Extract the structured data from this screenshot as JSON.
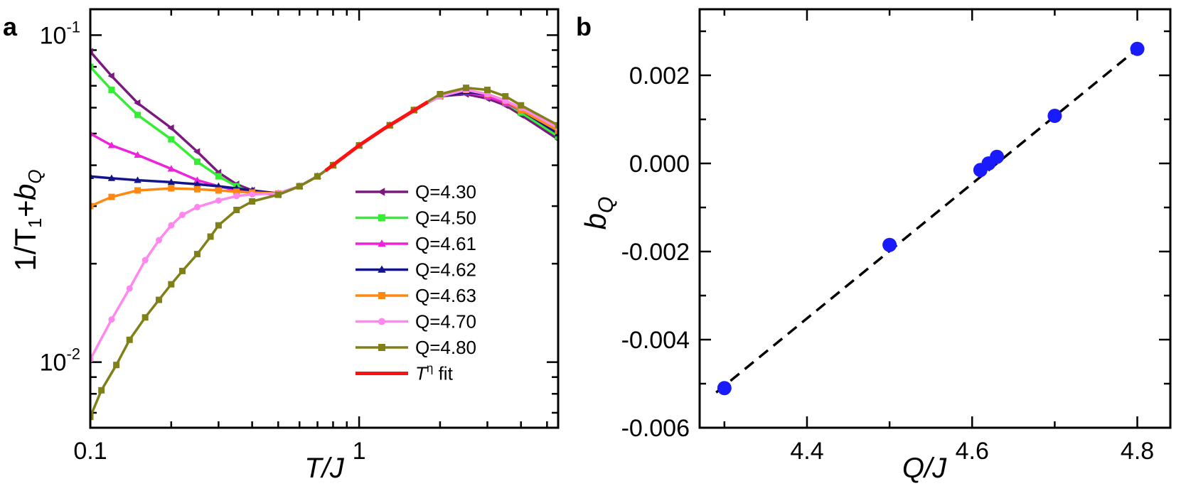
{
  "chart_data": [
    {
      "panel_label": "a",
      "type": "line",
      "xscale": "log",
      "yscale": "log",
      "xlim": [
        0.1,
        5.5
      ],
      "ylim": [
        0.0063,
        0.12
      ],
      "xticks": [
        {
          "value": 0.1,
          "label": "0.1"
        },
        {
          "value": 1,
          "label": "1"
        }
      ],
      "yticks": [
        {
          "value": 0.01,
          "base": "10",
          "exp": "-2"
        },
        {
          "value": 0.1,
          "base": "10",
          "exp": "-1"
        }
      ],
      "xlabel": {
        "main": "T/J"
      },
      "ylabel": {
        "prefix": "1/T",
        "sub1": "1",
        "mid": "+b",
        "sub2": "Q"
      },
      "legend_position": "lower-right",
      "series": [
        {
          "name": "Q=4.30",
          "color": "#7b1a7e",
          "marker": "triangle-left",
          "x": [
            0.1,
            0.12,
            0.15,
            0.2,
            0.25,
            0.3,
            0.35,
            0.4,
            0.5,
            0.6,
            0.7,
            0.8,
            1.0,
            1.3,
            1.6,
            2.0,
            2.5,
            3.0,
            3.5,
            4.0,
            5.5
          ],
          "y": [
            0.089,
            0.075,
            0.062,
            0.052,
            0.044,
            0.038,
            0.035,
            0.0335,
            0.0325,
            0.0345,
            0.037,
            0.04,
            0.046,
            0.053,
            0.059,
            0.065,
            0.066,
            0.064,
            0.061,
            0.057,
            0.048
          ]
        },
        {
          "name": "Q=4.50",
          "color": "#33ee33",
          "marker": "square",
          "x": [
            0.1,
            0.12,
            0.15,
            0.2,
            0.25,
            0.3,
            0.35,
            0.4,
            0.5,
            0.6,
            0.7,
            0.8,
            1.0,
            1.3,
            1.6,
            2.0,
            2.5,
            3.0,
            3.5,
            4.0,
            5.5
          ],
          "y": [
            0.08,
            0.068,
            0.057,
            0.048,
            0.041,
            0.037,
            0.0345,
            0.033,
            0.0325,
            0.0345,
            0.037,
            0.04,
            0.046,
            0.053,
            0.059,
            0.065,
            0.067,
            0.065,
            0.062,
            0.058,
            0.049
          ]
        },
        {
          "name": "Q=4.61",
          "color": "#ee22dd",
          "marker": "triangle-up",
          "x": [
            0.1,
            0.12,
            0.15,
            0.2,
            0.25,
            0.3,
            0.35,
            0.4,
            0.5,
            0.6,
            0.7,
            0.8,
            1.0,
            1.3,
            1.6,
            2.0,
            2.5,
            3.0,
            3.5,
            4.0,
            5.5
          ],
          "y": [
            0.05,
            0.046,
            0.043,
            0.039,
            0.036,
            0.0345,
            0.0335,
            0.033,
            0.0325,
            0.0345,
            0.037,
            0.04,
            0.046,
            0.053,
            0.059,
            0.065,
            0.067,
            0.065,
            0.062,
            0.059,
            0.05
          ]
        },
        {
          "name": "Q=4.62",
          "color": "#14148a",
          "marker": "triangle-up",
          "x": [
            0.1,
            0.12,
            0.15,
            0.2,
            0.25,
            0.3,
            0.35,
            0.4,
            0.5,
            0.6,
            0.7,
            0.8,
            1.0,
            1.3,
            1.6,
            2.0,
            2.5,
            3.0,
            3.5,
            4.0,
            5.5
          ],
          "y": [
            0.037,
            0.0365,
            0.036,
            0.0355,
            0.035,
            0.0345,
            0.034,
            0.0335,
            0.0328,
            0.0345,
            0.037,
            0.04,
            0.046,
            0.053,
            0.059,
            0.065,
            0.067,
            0.066,
            0.063,
            0.059,
            0.05
          ]
        },
        {
          "name": "Q=4.63",
          "color": "#ff8811",
          "marker": "square",
          "x": [
            0.1,
            0.12,
            0.15,
            0.2,
            0.25,
            0.3,
            0.35,
            0.4,
            0.5,
            0.6,
            0.7,
            0.8,
            1.0,
            1.3,
            1.6,
            2.0,
            2.5,
            3.0,
            3.5,
            4.0,
            5.5
          ],
          "y": [
            0.03,
            0.032,
            0.0335,
            0.034,
            0.0338,
            0.0335,
            0.0332,
            0.033,
            0.0328,
            0.0345,
            0.037,
            0.04,
            0.046,
            0.053,
            0.059,
            0.065,
            0.068,
            0.066,
            0.063,
            0.059,
            0.051
          ]
        },
        {
          "name": "Q=4.70",
          "color": "#ff88ee",
          "marker": "circle",
          "x": [
            0.1,
            0.12,
            0.14,
            0.16,
            0.18,
            0.2,
            0.22,
            0.25,
            0.3,
            0.35,
            0.4,
            0.5,
            0.6,
            0.7,
            0.8,
            1.0,
            1.3,
            1.6,
            2.0,
            2.5,
            3.0,
            3.5,
            4.0,
            5.5
          ],
          "y": [
            0.0102,
            0.0135,
            0.0168,
            0.0205,
            0.0236,
            0.0262,
            0.0282,
            0.0298,
            0.0312,
            0.0322,
            0.0326,
            0.0328,
            0.0345,
            0.037,
            0.04,
            0.046,
            0.053,
            0.059,
            0.065,
            0.068,
            0.066,
            0.063,
            0.06,
            0.052
          ]
        },
        {
          "name": "Q=4.80",
          "color": "#808018",
          "marker": "square",
          "x": [
            0.1,
            0.11,
            0.125,
            0.14,
            0.16,
            0.18,
            0.2,
            0.22,
            0.25,
            0.28,
            0.3,
            0.35,
            0.4,
            0.5,
            0.6,
            0.7,
            0.8,
            1.0,
            1.3,
            1.6,
            2.0,
            2.5,
            3.0,
            3.5,
            4.0,
            5.5
          ],
          "y": [
            0.0068,
            0.0082,
            0.0098,
            0.0117,
            0.0137,
            0.0155,
            0.0173,
            0.019,
            0.0214,
            0.0242,
            0.0262,
            0.0292,
            0.031,
            0.0325,
            0.0345,
            0.037,
            0.04,
            0.046,
            0.053,
            0.059,
            0.066,
            0.069,
            0.068,
            0.065,
            0.061,
            0.053
          ]
        },
        {
          "name": "T^η fit",
          "name_main": "T",
          "name_sup": "η",
          "name_suffix": " fit",
          "color": "#ff1111",
          "marker": "none",
          "line_only": true,
          "x": [
            0.75,
            1.0,
            1.25,
            1.45,
            1.65,
            1.8
          ],
          "y": [
            0.0385,
            0.046,
            0.052,
            0.056,
            0.0598,
            0.0625
          ]
        }
      ]
    },
    {
      "panel_label": "b",
      "type": "scatter",
      "xlim": [
        4.27,
        4.84
      ],
      "ylim": [
        -0.006,
        0.0035
      ],
      "xticks": [
        4.4,
        4.6,
        4.8
      ],
      "xtick_labels": [
        "4.4",
        "4.6",
        "4.8"
      ],
      "yticks": [
        -0.006,
        -0.004,
        -0.002,
        0.0,
        0.002
      ],
      "ytick_labels": [
        "-0.006",
        "-0.004",
        "-0.002",
        "0.000",
        "0.002"
      ],
      "xlabel": {
        "main": "Q/J"
      },
      "ylabel": {
        "main": "b",
        "sub": "Q"
      },
      "point_color": "#1a1aff",
      "fit_line_color": "#000000",
      "fit_line_style": "dashed",
      "fit_line": {
        "x": [
          4.29,
          4.8
        ],
        "y": [
          -0.0052,
          0.0026
        ]
      },
      "x": [
        4.3,
        4.5,
        4.61,
        4.62,
        4.63,
        4.7,
        4.8
      ],
      "y": [
        -0.0051,
        -0.00185,
        -0.00015,
        0.0,
        0.00015,
        0.00108,
        0.0026
      ]
    }
  ]
}
